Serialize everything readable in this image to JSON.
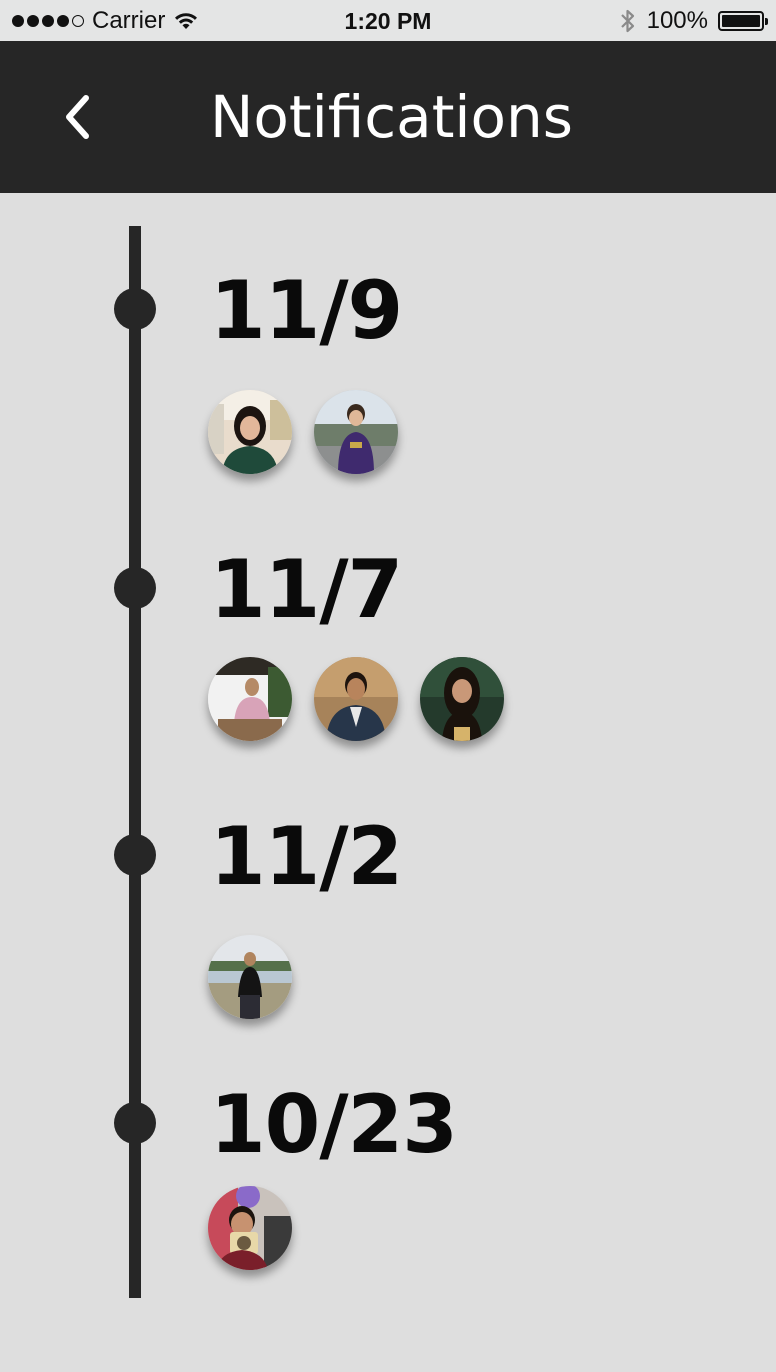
{
  "status_bar": {
    "carrier": "Carrier",
    "time": "1:20 PM",
    "battery_percent": "100%",
    "battery_level": 1.0,
    "signal_bars_filled": 4,
    "signal_bars_total": 5
  },
  "header": {
    "back_icon": "chevron-left-icon",
    "title": "Notifications",
    "background_color": "#262626"
  },
  "timeline": {
    "groups": [
      {
        "date": "11/9",
        "avatars": [
          {
            "name": "avatar-user-1"
          },
          {
            "name": "avatar-user-2"
          }
        ]
      },
      {
        "date": "11/7",
        "avatars": [
          {
            "name": "avatar-user-3"
          },
          {
            "name": "avatar-user-4"
          },
          {
            "name": "avatar-user-5"
          }
        ]
      },
      {
        "date": "11/2",
        "avatars": [
          {
            "name": "avatar-user-6"
          }
        ]
      },
      {
        "date": "10/23",
        "avatars": [
          {
            "name": "avatar-user-7"
          }
        ]
      }
    ]
  },
  "colors": {
    "background": "#dedede",
    "timeline": "#262626",
    "date_text": "#0a0a0a"
  }
}
